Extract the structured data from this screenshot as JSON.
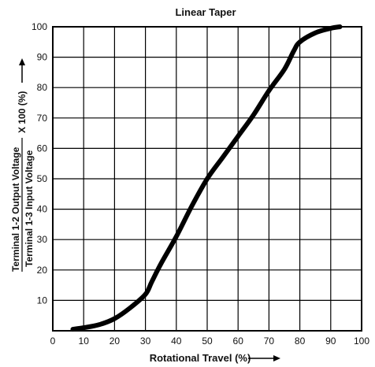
{
  "chart_data": {
    "type": "line",
    "title": "Linear Taper",
    "xlabel": "Rotational Travel (%)",
    "ylabel": {
      "numerator": "Terminal 1-2 Output Voltage",
      "denominator": "Terminal 1-3 Input Voltage",
      "multiplier": "X 100 (%)"
    },
    "xlim": [
      0,
      100
    ],
    "ylim": [
      0,
      100
    ],
    "x_ticks": [
      0,
      10,
      20,
      30,
      40,
      50,
      60,
      70,
      80,
      90,
      100
    ],
    "y_ticks": [
      10,
      20,
      30,
      40,
      50,
      60,
      70,
      80,
      90,
      100
    ],
    "grid": true,
    "series": [
      {
        "color": "#000000",
        "x": [
          6.5,
          10,
          15,
          20,
          25,
          30,
          32,
          35,
          40,
          45,
          50,
          55,
          60,
          65,
          70,
          75,
          78,
          80,
          85,
          90,
          93
        ],
        "y": [
          0.5,
          1,
          2,
          4,
          7.5,
          12,
          16,
          22,
          31,
          41,
          50,
          57,
          64,
          71,
          79,
          86,
          92,
          95,
          98,
          99.5,
          100
        ]
      }
    ]
  }
}
